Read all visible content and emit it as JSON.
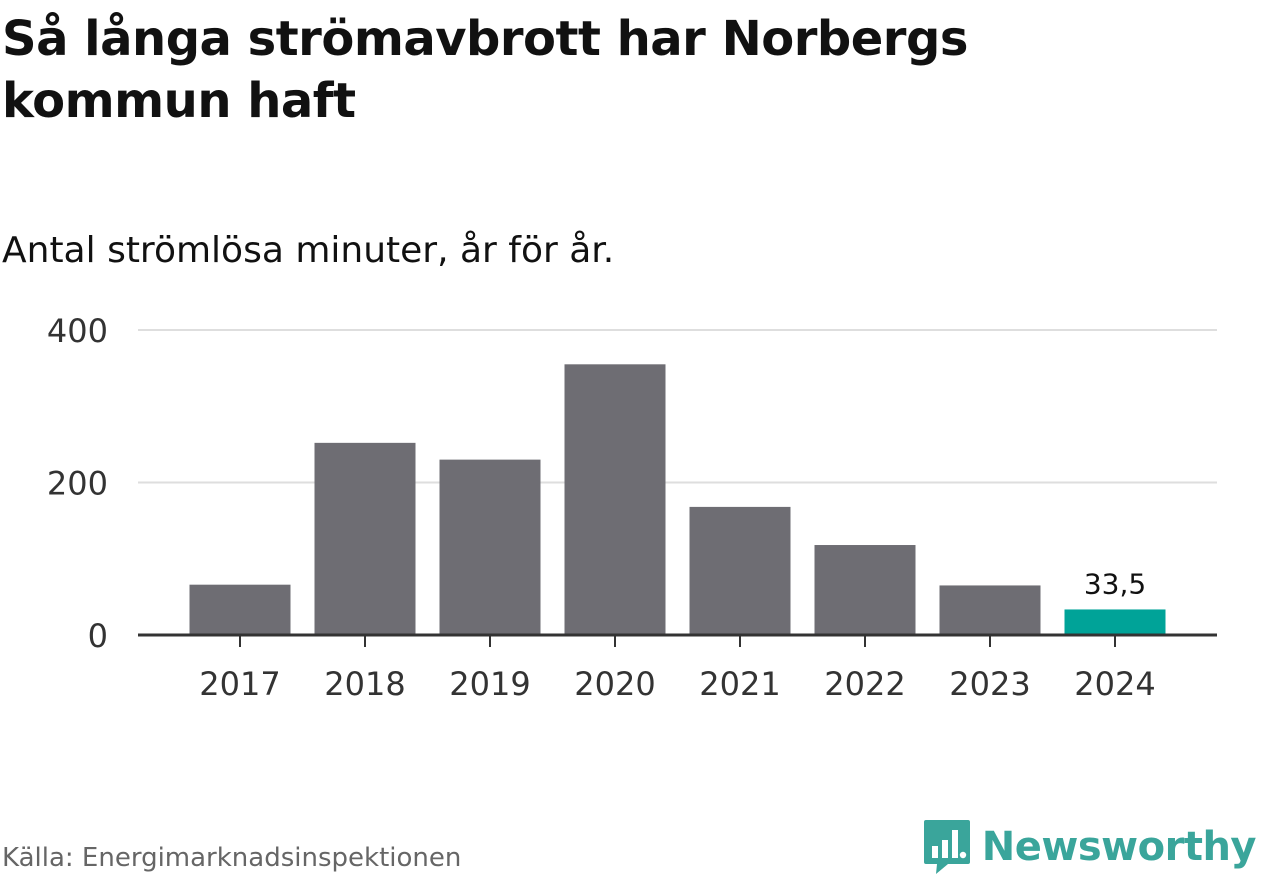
{
  "title": "Så långa strömavbrott har Norbergs kommun haft",
  "subtitle": "Antal strömlösa minuter, år för år.",
  "source": "Källa: Energimarknadsinspektionen",
  "brand": {
    "name": "Newsworthy",
    "color": "#3aa59b",
    "icon": "bar-chart-speech-bubble-icon"
  },
  "colors": {
    "bar": "#6e6d73",
    "highlight": "#00a398",
    "grid": "#dedede",
    "axis": "#333333"
  },
  "chart_data": {
    "type": "bar",
    "categories": [
      "2017",
      "2018",
      "2019",
      "2020",
      "2021",
      "2022",
      "2023",
      "2024"
    ],
    "values": [
      66,
      252,
      230,
      355,
      168,
      118,
      65,
      33.5
    ],
    "highlight_index": 7,
    "data_labels": [
      {
        "index": 7,
        "text": "33,5"
      }
    ],
    "yticks": [
      {
        "value": 0,
        "label": "0"
      },
      {
        "value": 200,
        "label": "200"
      },
      {
        "value": 400,
        "label": "400"
      }
    ],
    "ylim": [
      0,
      400
    ],
    "xlabel": "",
    "ylabel": "",
    "grid": true,
    "legend": "none"
  }
}
